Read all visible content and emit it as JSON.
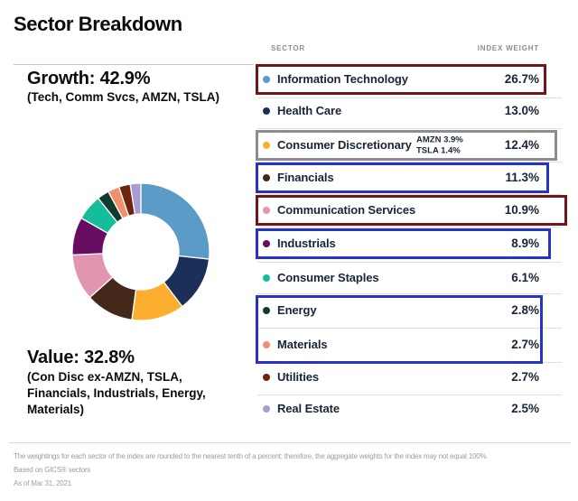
{
  "title": "Sector Breakdown",
  "growth": {
    "label": "Growth: 42.9%",
    "sublabel": "(Tech, Comm Svcs, AMZN, TSLA)"
  },
  "value": {
    "label": "Value: 32.8%",
    "sublabel": "(Con Disc ex-AMZN, TSLA,\nFinancials, Industrials, Energy,\nMaterials)"
  },
  "table": {
    "headers": {
      "sector": "SECTOR",
      "weight": "INDEX WEIGHT"
    },
    "rows": [
      {
        "sector": "Information Technology",
        "weight": "26.7%",
        "dot_color": "#5A9BC8"
      },
      {
        "sector": "Health Care",
        "weight": "13.0%",
        "dot_color": "#1B2F58"
      },
      {
        "sector": "Consumer Discretionary",
        "weight": "12.4%",
        "dot_color": "#FCAF2E",
        "note": "AMZN 3.9%\nTSLA 1.4%"
      },
      {
        "sector": "Financials",
        "weight": "11.3%",
        "dot_color": "#44281A"
      },
      {
        "sector": "Communication Services",
        "weight": "10.9%",
        "dot_color": "#E295B0"
      },
      {
        "sector": "Industrials",
        "weight": "8.9%",
        "dot_color": "#690D62"
      },
      {
        "sector": "Consumer Staples",
        "weight": "6.1%",
        "dot_color": "#15BD9A"
      },
      {
        "sector": "Energy",
        "weight": "2.8%",
        "dot_color": "#123B2D"
      },
      {
        "sector": "Materials",
        "weight": "2.7%",
        "dot_color": "#F28F6C"
      },
      {
        "sector": "Utilities",
        "weight": "2.7%",
        "dot_color": "#6F2410"
      },
      {
        "sector": "Real Estate",
        "weight": "2.5%",
        "dot_color": "#A89CD2"
      }
    ],
    "highlights": [
      {
        "rows": [
          0
        ],
        "color": "darkred"
      },
      {
        "rows": [
          2
        ],
        "color": "gray"
      },
      {
        "rows": [
          3
        ],
        "color": "blue"
      },
      {
        "rows": [
          4
        ],
        "color": "darkred"
      },
      {
        "rows": [
          5
        ],
        "color": "blue"
      },
      {
        "rows": [
          7,
          8
        ],
        "color": "blue"
      }
    ],
    "highlight_colors": {
      "darkred": "#751419",
      "blue": "#2533CB",
      "gray": "#8D8D8D"
    }
  },
  "chart_data": {
    "type": "pie",
    "subtype": "donut",
    "title": "Sector Breakdown",
    "categories": [
      "Information Technology",
      "Health Care",
      "Consumer Discretionary",
      "Financials",
      "Communication Services",
      "Industrials",
      "Consumer Staples",
      "Energy",
      "Materials",
      "Utilities",
      "Real Estate"
    ],
    "values": [
      26.7,
      13.0,
      12.4,
      11.3,
      10.9,
      8.9,
      6.1,
      2.8,
      2.7,
      2.7,
      2.5
    ],
    "colors": [
      "#5A9BC8",
      "#1B2F58",
      "#FCAF2E",
      "#44281A",
      "#E295B0",
      "#690D62",
      "#15BD9A",
      "#123B2D",
      "#F28F6C",
      "#6F2410",
      "#A89CD2"
    ],
    "unit": "%",
    "start_angle_deg": 0,
    "direction": "clockwise",
    "legend_position": "right-table",
    "groups": {
      "growth": {
        "label": "Growth: 42.9%",
        "members": "(Tech, Comm Svcs, AMZN, TSLA)"
      },
      "value": {
        "label": "Value: 32.8%",
        "members": "(Con Disc ex-AMZN, TSLA, Financials, Industrials, Energy, Materials)"
      }
    },
    "annotations": {
      "consumer_discretionary": "AMZN 3.9% TSLA 1.4%"
    }
  },
  "footer": {
    "line1": "The weightings for each sector of the index are rounded to the nearest tenth of a percent; therefore, the aggregate weights for the index may not equal 100%.",
    "line2": "Based on GICS® sectors",
    "line3": "As of Mar 31, 2021"
  }
}
